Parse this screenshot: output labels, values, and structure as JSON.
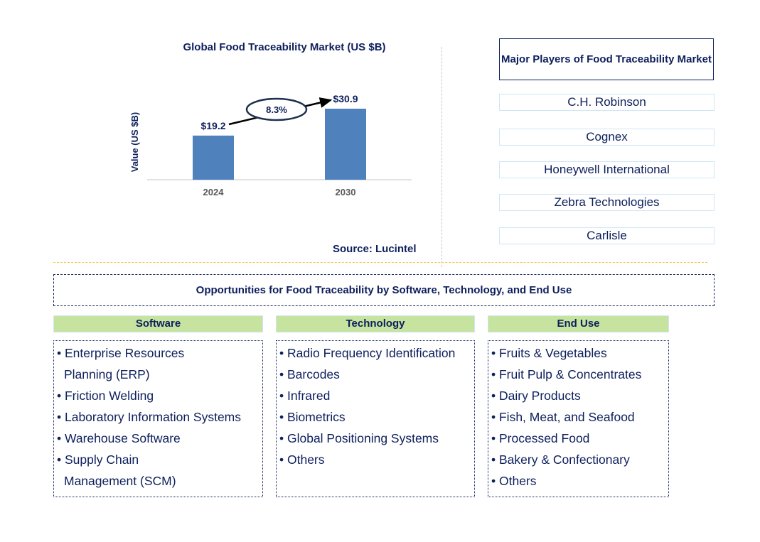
{
  "chart_data": {
    "type": "bar",
    "title": "Global Food Traceability Market (US $B)",
    "ylabel": "Value (US $B)",
    "xlabel": "",
    "categories": [
      "2024",
      "2030"
    ],
    "values": [
      19.2,
      30.9
    ],
    "data_labels": [
      "$19.2",
      "$30.9"
    ],
    "cagr_label": "8.3%",
    "bar_color": "#4f81bd",
    "grid": false,
    "source": "Source: Lucintel"
  },
  "players": {
    "title": "Major Players of Food Traceability Market",
    "items": [
      "C.H. Robinson",
      "Cognex",
      "Honeywell International",
      "Zebra Technologies",
      "Carlisle"
    ]
  },
  "opportunities": {
    "title": "Opportunities for Food Traceability by Software, Technology, and End Use",
    "header_color": "#c6e3a0",
    "categories": [
      {
        "label": "Software",
        "items": [
          [
            "Enterprise Resources",
            "Planning (ERP)"
          ],
          [
            "Friction Welding"
          ],
          [
            "Laboratory Information Systems"
          ],
          [
            "Warehouse Software"
          ],
          [
            "Supply Chain",
            "Management (SCM)"
          ]
        ]
      },
      {
        "label": "Technology",
        "items": [
          [
            "Radio Frequency Identification"
          ],
          [
            "Barcodes"
          ],
          [
            "Infrared"
          ],
          [
            "Biometrics"
          ],
          [
            "Global Positioning Systems"
          ],
          [
            "Others"
          ]
        ]
      },
      {
        "label": "End Use",
        "items": [
          [
            "Fruits & Vegetables"
          ],
          [
            "Fruit Pulp & Concentrates"
          ],
          [
            "Dairy Products"
          ],
          [
            "Fish, Meat, and Seafood"
          ],
          [
            "Processed Food"
          ],
          [
            "Bakery & Confectionary"
          ],
          [
            "Others"
          ]
        ]
      }
    ]
  }
}
